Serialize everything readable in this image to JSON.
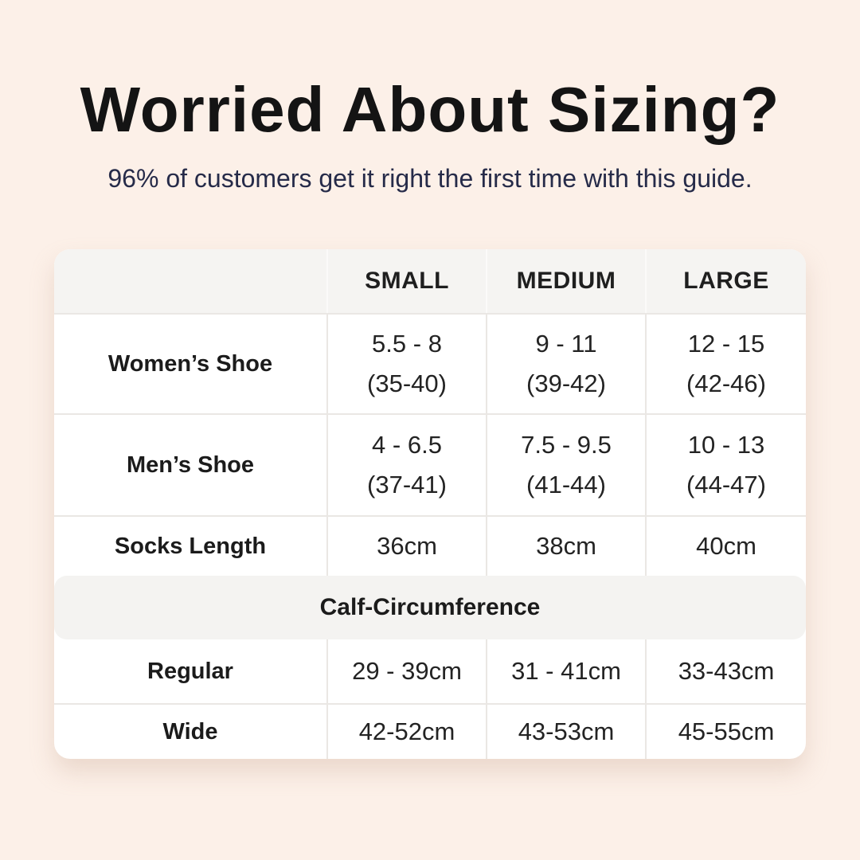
{
  "title": "Worried About Sizing?",
  "subtitle": "96% of customers get it right the first time with this guide.",
  "colors": {
    "page_bg": "#fcf0e8",
    "card_bg": "#ffffff",
    "header_bg": "#f5f4f2",
    "band_bg": "#f4f3f1",
    "divider": "#eae7e4",
    "header_divider": "#fbfaf9",
    "title_color": "#141414",
    "subtitle_color": "#262b49",
    "text_color": "#1e1e1e"
  },
  "size_table": {
    "column_headers": [
      "SMALL",
      "MEDIUM",
      "LARGE"
    ],
    "rows": [
      {
        "label": "Women’s Shoe",
        "cells": [
          {
            "l1": "5.5 - 8",
            "l2": "(35-40)"
          },
          {
            "l1": "9 - 11",
            "l2": "(39-42)"
          },
          {
            "l1": "12 - 15",
            "l2": "(42-46)"
          }
        ]
      },
      {
        "label": "Men’s Shoe",
        "cells": [
          {
            "l1": "4 - 6.5",
            "l2": "(37-41)"
          },
          {
            "l1": "7.5 - 9.5",
            "l2": "(41-44)"
          },
          {
            "l1": "10 - 13",
            "l2": "(44-47)"
          }
        ]
      },
      {
        "label": "Socks Length",
        "cells": [
          {
            "l1": "36cm"
          },
          {
            "l1": "38cm"
          },
          {
            "l1": "40cm"
          }
        ]
      }
    ],
    "section_header": "Calf-Circumference",
    "calf_rows": [
      {
        "label": "Regular",
        "cells": [
          {
            "l1": "29 - 39cm"
          },
          {
            "l1": "31 - 41cm"
          },
          {
            "l1": "33-43cm"
          }
        ]
      },
      {
        "label": "Wide",
        "cells": [
          {
            "l1": "42-52cm"
          },
          {
            "l1": "43-53cm"
          },
          {
            "l1": "45-55cm"
          }
        ]
      }
    ]
  },
  "chart_data": {
    "type": "table",
    "title": "Worried About Sizing?",
    "subtitle": "96% of customers get it right the first time with this guide.",
    "columns": [
      "",
      "SMALL",
      "MEDIUM",
      "LARGE"
    ],
    "rows": [
      [
        "Women’s Shoe",
        "5.5 - 8 (35-40)",
        "9 - 11 (39-42)",
        "12 - 15 (42-46)"
      ],
      [
        "Men’s Shoe",
        "4 - 6.5 (37-41)",
        "7.5 - 9.5 (41-44)",
        "10 - 13 (44-47)"
      ],
      [
        "Socks Length",
        "36cm",
        "38cm",
        "40cm"
      ],
      [
        "Calf-Circumference (section header)",
        "",
        "",
        ""
      ],
      [
        "Regular",
        "29 - 39cm",
        "31 - 41cm",
        "33-43cm"
      ],
      [
        "Wide",
        "42-52cm",
        "43-53cm",
        "45-55cm"
      ]
    ],
    "layout_hints": {
      "header_background": "#f5f4f2",
      "section_band_full_width": true,
      "grid": "light-gray dividers, rounded card on pale peach background"
    }
  }
}
